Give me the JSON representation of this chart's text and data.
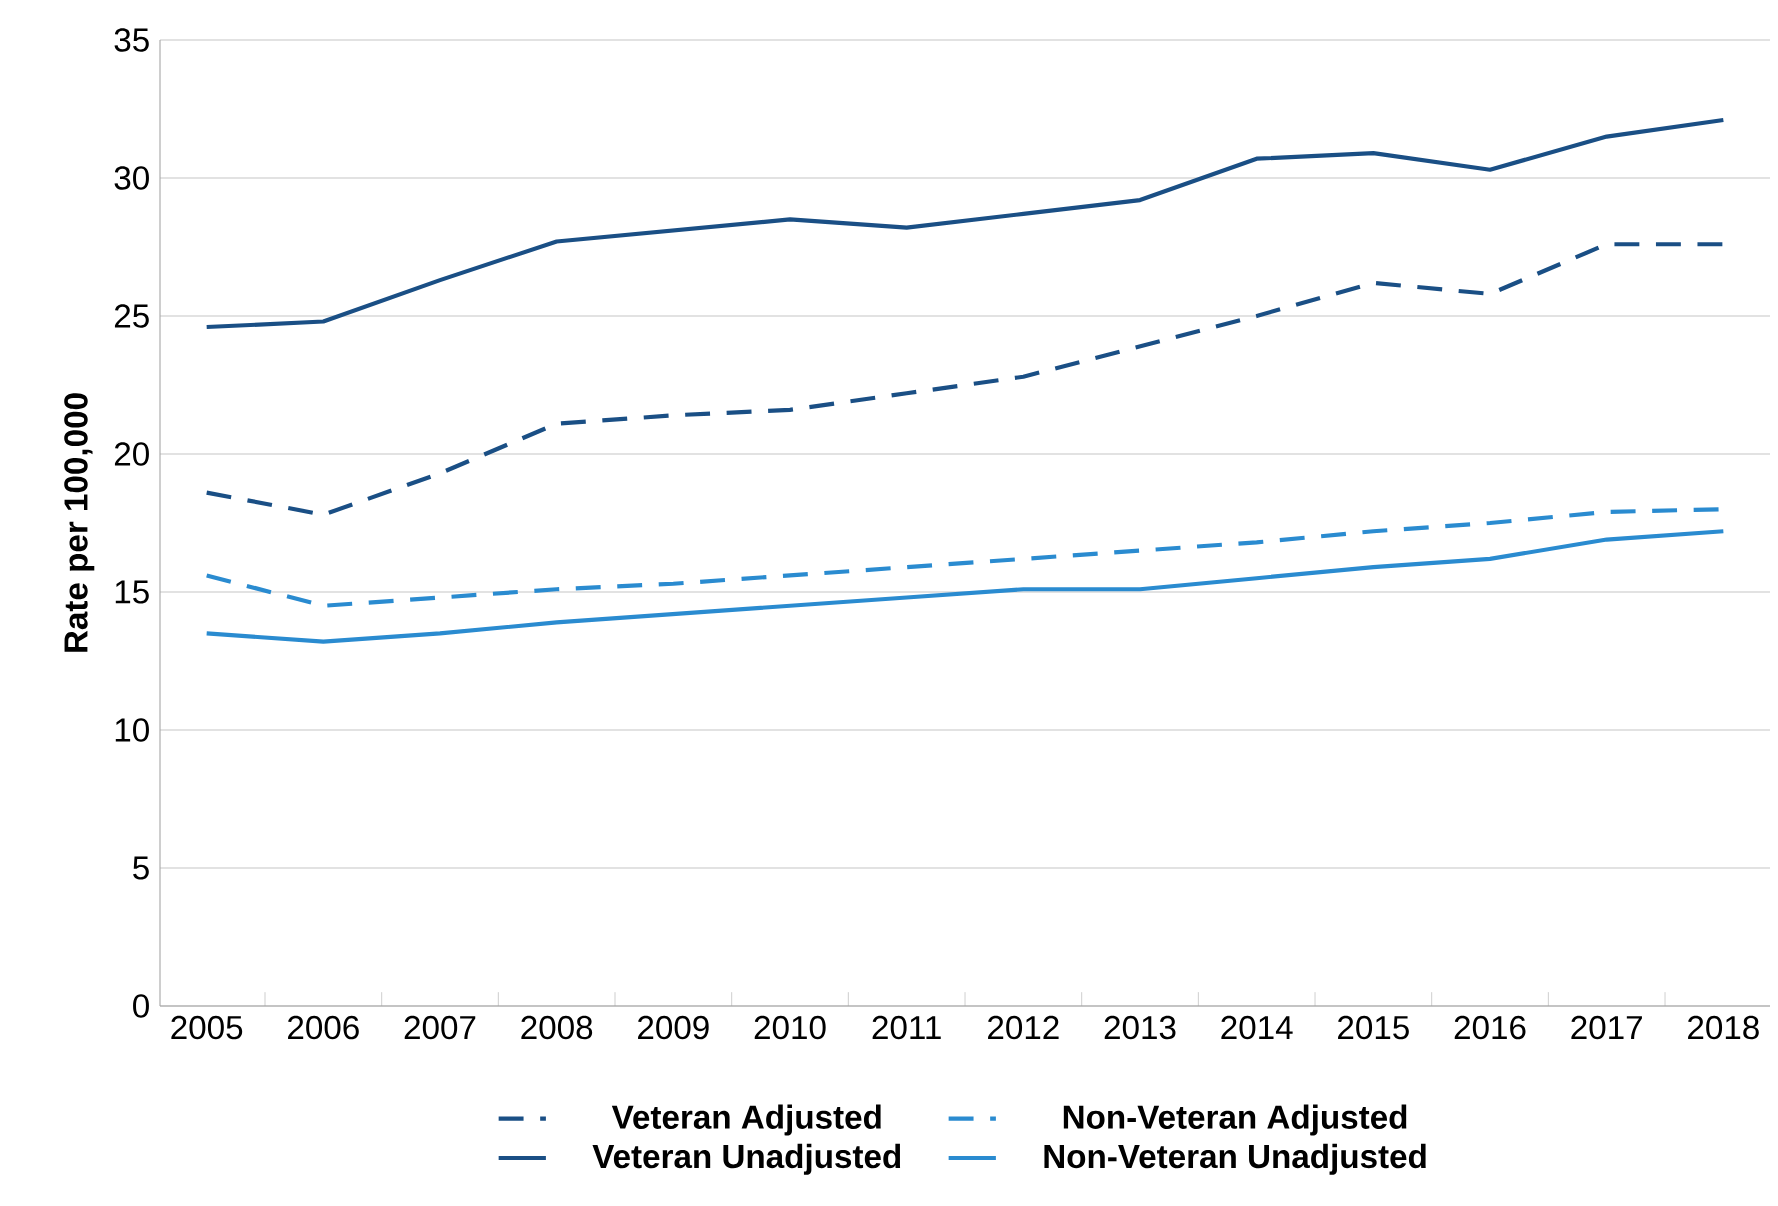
{
  "chart_data": {
    "type": "line",
    "ylabel": "Rate per 100,000",
    "categories": [
      "2005",
      "2006",
      "2007",
      "2008",
      "2009",
      "2010",
      "2011",
      "2012",
      "2013",
      "2014",
      "2015",
      "2016",
      "2017",
      "2018"
    ],
    "series": [
      {
        "name": "Veteran Adjusted",
        "color": "#1a4f85",
        "line_style": "dashed",
        "values": [
          18.6,
          17.8,
          19.3,
          21.1,
          21.4,
          21.6,
          22.2,
          22.8,
          23.9,
          25.0,
          26.2,
          25.8,
          27.6,
          27.6
        ]
      },
      {
        "name": "Non-Veteran Adjusted",
        "color": "#2a8bd0",
        "line_style": "dashed",
        "values": [
          15.6,
          14.5,
          14.8,
          15.1,
          15.3,
          15.6,
          15.9,
          16.2,
          16.5,
          16.8,
          17.2,
          17.5,
          17.9,
          18.0
        ]
      },
      {
        "name": "Veteran Unadjusted",
        "color": "#1a4f85",
        "line_style": "solid",
        "values": [
          24.6,
          24.8,
          26.3,
          27.7,
          28.1,
          28.5,
          28.2,
          28.7,
          29.2,
          30.7,
          30.9,
          30.3,
          31.5,
          32.1
        ]
      },
      {
        "name": "Non-Veteran Unadjusted",
        "color": "#2a8bd0",
        "line_style": "solid",
        "values": [
          13.5,
          13.2,
          13.5,
          13.9,
          14.2,
          14.5,
          14.8,
          15.1,
          15.1,
          15.5,
          15.9,
          16.2,
          16.9,
          17.2
        ]
      }
    ],
    "ylim": [
      0,
      35
    ],
    "yticks": [
      0,
      5,
      10,
      15,
      20,
      25,
      30,
      35
    ],
    "grid": "y",
    "legend": "bottom",
    "marker": "none"
  }
}
